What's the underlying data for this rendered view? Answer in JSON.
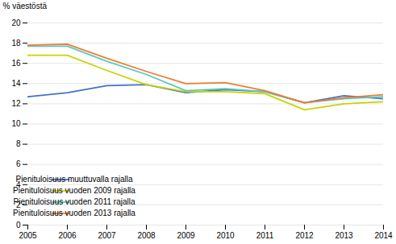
{
  "chart_data": {
    "type": "line",
    "ylabel": "% väestöstä",
    "x": [
      2005,
      2006,
      2007,
      2008,
      2009,
      2010,
      2011,
      2012,
      2013,
      2014
    ],
    "series": [
      {
        "name": "Pienituloisuus muuttuvalla rajalla",
        "color": "#4472C4",
        "values": [
          12.7,
          13.1,
          13.8,
          13.9,
          13.1,
          13.4,
          13.2,
          12.1,
          12.8,
          12.5
        ]
      },
      {
        "name": "Pienituloisuus vuoden 2009 rajalla",
        "color": "#c8d400",
        "values": [
          16.8,
          16.8,
          15.3,
          13.9,
          13.2,
          13.2,
          13.0,
          11.4,
          12.0,
          12.2
        ]
      },
      {
        "name": "Pienituloisuus vuoden 2011 rajalla",
        "color": "#5BC8C0",
        "values": [
          17.7,
          17.7,
          16.2,
          14.9,
          13.3,
          13.5,
          13.2,
          12.1,
          12.5,
          12.7
        ]
      },
      {
        "name": "Pienituloisuus vuoden 2013 rajalla",
        "color": "#ED7D31",
        "values": [
          17.8,
          17.9,
          16.5,
          15.2,
          14.0,
          14.1,
          13.3,
          12.1,
          12.6,
          12.9
        ]
      }
    ],
    "xlim": [
      2005,
      2014
    ],
    "xticks": [
      2005,
      2006,
      2007,
      2008,
      2009,
      2010,
      2011,
      2012,
      2013,
      2014
    ],
    "ylim": [
      0,
      20
    ],
    "yticks": [
      0,
      2,
      4,
      6,
      8,
      10,
      12,
      14,
      16,
      18,
      20
    ],
    "grid": true,
    "legend": "lower left"
  }
}
